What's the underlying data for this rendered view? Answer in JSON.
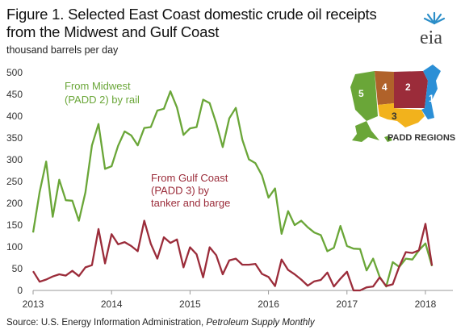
{
  "title_line1": "Figure 1. Selected East Coast domestic crude oil receipts",
  "title_line2": "from the Midwest and Gulf Coast",
  "subtitle": "thousand barrels per day",
  "logo_text": "eia",
  "source_prefix": "Source: U.S. Energy Information Administration, ",
  "source_italic": "Petroleum Supply Monthly",
  "map": {
    "legend_label": "PADD REGIONS",
    "regions": [
      "5",
      "4",
      "2",
      "1",
      "3"
    ],
    "colors": {
      "padd1": "#2b8fd6",
      "padd2": "#9b2c3a",
      "padd3": "#f2b21c",
      "padd4": "#b0622a",
      "padd5": "#6aa638"
    }
  },
  "chart_data": {
    "type": "line",
    "title": "Figure 1. Selected East Coast domestic crude oil receipts from the Midwest and Gulf Coast",
    "ylabel": "thousand barrels per day",
    "xlabel": "",
    "ylim": [
      0,
      500
    ],
    "xlim": [
      2013.0,
      2018.35
    ],
    "yticks": [
      0,
      50,
      100,
      150,
      200,
      250,
      300,
      350,
      400,
      450,
      500
    ],
    "xticks": [
      2013,
      2014,
      2015,
      2016,
      2017,
      2018
    ],
    "grid": false,
    "series": [
      {
        "name": "From Midwest (PADD 2) by rail",
        "label_lines": [
          "From Midwest",
          "(PADD 2) by rail"
        ],
        "color": "#6aa638",
        "values": [
          133,
          226,
          296,
          169,
          254,
          207,
          206,
          160,
          225,
          333,
          382,
          279,
          285,
          332,
          365,
          356,
          333,
          373,
          375,
          413,
          417,
          457,
          420,
          357,
          372,
          375,
          438,
          430,
          384,
          329,
          395,
          419,
          346,
          301,
          292,
          264,
          213,
          234,
          130,
          182,
          150,
          160,
          145,
          133,
          127,
          90,
          98,
          148,
          102,
          96,
          95,
          46,
          73,
          31,
          9,
          65,
          54,
          73,
          71,
          92,
          108,
          56
        ]
      },
      {
        "name": "From Gulf Coast (PADD 3) by tanker and barge",
        "label_lines": [
          "From Gulf Coast",
          "(PADD 3) by",
          "tanker and barge"
        ],
        "color": "#9b2c3a",
        "values": [
          44,
          20,
          25,
          32,
          37,
          34,
          45,
          33,
          53,
          58,
          141,
          62,
          129,
          106,
          111,
          102,
          90,
          160,
          107,
          73,
          122,
          109,
          117,
          53,
          99,
          83,
          30,
          99,
          81,
          37,
          69,
          73,
          59,
          59,
          61,
          38,
          31,
          10,
          71,
          47,
          37,
          25,
          11,
          21,
          24,
          41,
          9,
          27,
          43,
          0,
          0,
          7,
          9,
          30,
          10,
          14,
          55,
          88,
          86,
          92,
          153,
          57
        ]
      }
    ],
    "x_start": 2013.0,
    "x_step_months": 1
  }
}
